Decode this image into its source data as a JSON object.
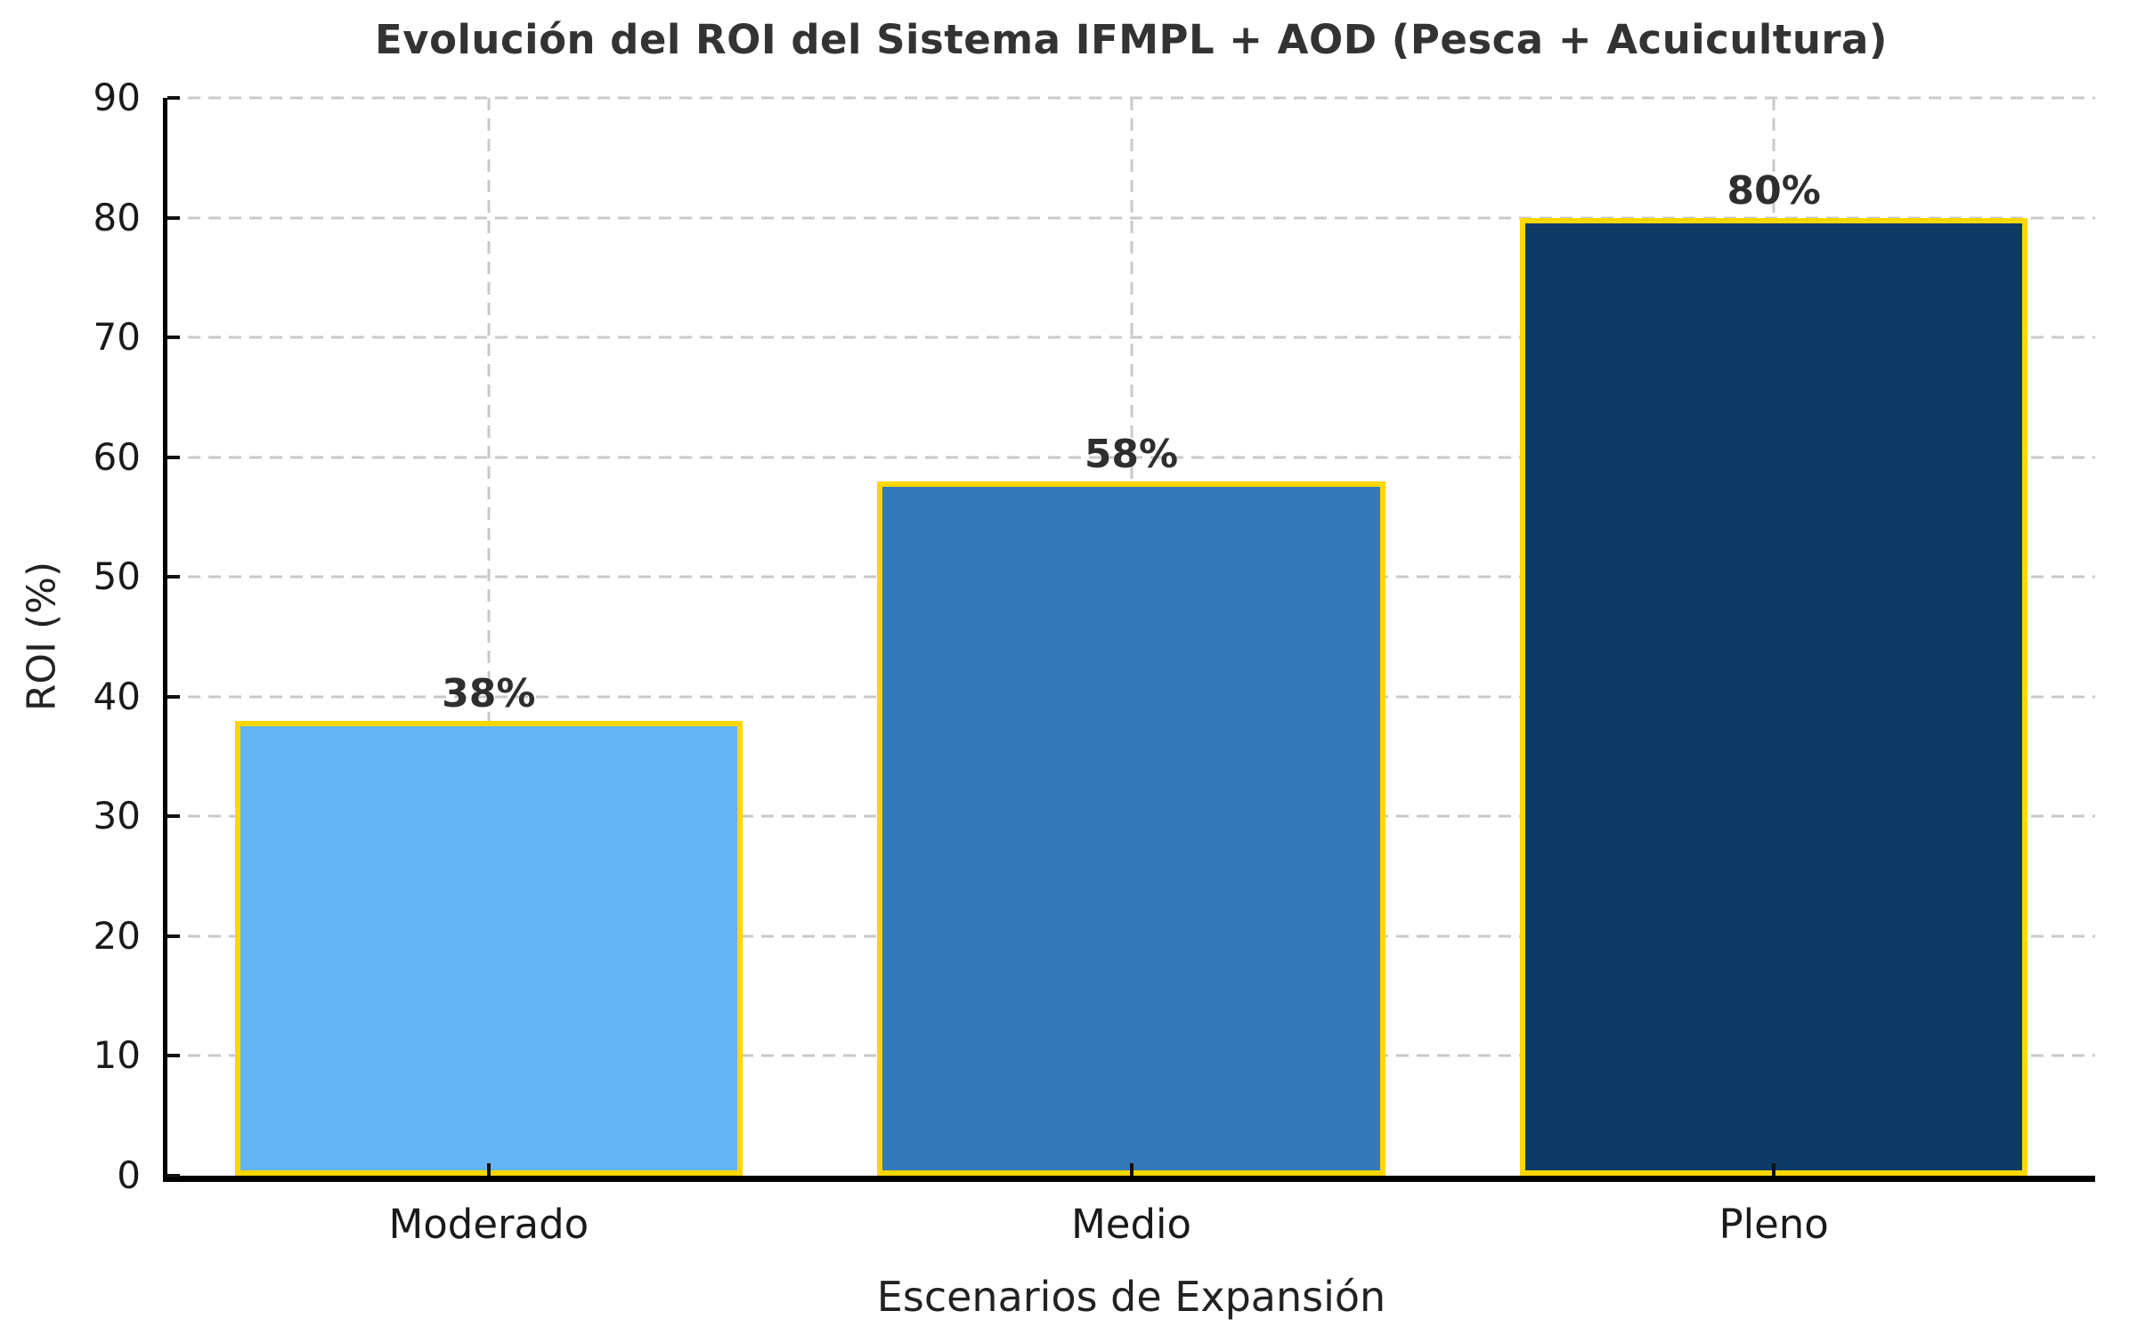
{
  "chart_data": {
    "type": "bar",
    "title": "Evolución del ROI del Sistema IFMPL + AOD (Pesca + Acuicultura)",
    "xlabel": "Escenarios de Expansión",
    "ylabel": "ROI (%)",
    "categories": [
      "Moderado",
      "Medio",
      "Pleno"
    ],
    "values": [
      38,
      58,
      80
    ],
    "value_labels": [
      "38%",
      "58%",
      "80%"
    ],
    "ylim": [
      0,
      90
    ],
    "yticks": [
      0,
      10,
      20,
      30,
      40,
      50,
      60,
      70,
      80,
      90
    ],
    "grid": true,
    "legend": "none",
    "bar_colors": [
      "#64B5F6",
      "#3579B9",
      "#0D3B66"
    ],
    "bar_edge_color": "#FFD700",
    "grid_color": "#C9C9C9",
    "axis_color": "#000000",
    "title_color": "#333333",
    "tick_label_color": "#1A1A1A",
    "value_label_color": "#2E2E2E"
  }
}
